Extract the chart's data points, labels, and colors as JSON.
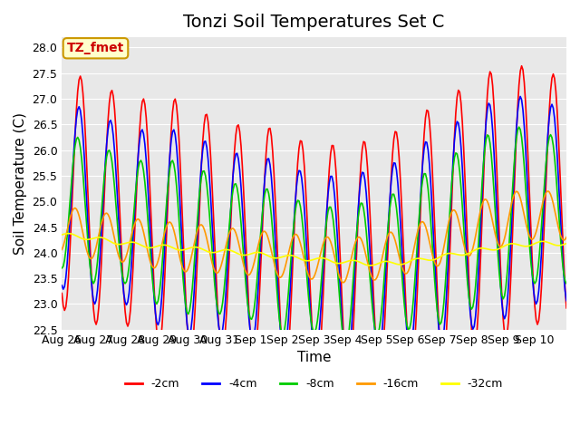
{
  "title": "Tonzi Soil Temperatures Set C",
  "xlabel": "Time",
  "ylabel": "Soil Temperature (C)",
  "annotation_text": "TZ_fmet",
  "annotation_bg": "#ffffcc",
  "annotation_border": "#cc9900",
  "annotation_text_color": "#cc0000",
  "ylim": [
    22.5,
    28.2
  ],
  "plot_bg": "#e8e8e8",
  "legend_entries": [
    "-2cm",
    "-4cm",
    "-8cm",
    "-16cm",
    "-32cm"
  ],
  "line_colors": [
    "#ff0000",
    "#0000ff",
    "#00cc00",
    "#ff9900",
    "#ffff00"
  ],
  "x_tick_labels": [
    "Aug 26",
    "Aug 27",
    "Aug 28",
    "Aug 29",
    "Aug 30",
    "Aug 31",
    "Sep 1",
    "Sep 2",
    "Sep 3",
    "Sep 4",
    "Sep 5",
    "Sep 6",
    "Sep 7",
    "Sep 8",
    "Sep 9",
    "Sep 10"
  ],
  "title_fontsize": 14,
  "axis_label_fontsize": 11,
  "tick_fontsize": 9,
  "mean_2cm": [
    25.2,
    25.0,
    24.8,
    24.6,
    24.5,
    24.3,
    24.2,
    24.0,
    23.85,
    23.75,
    23.9,
    24.1,
    24.4,
    24.7,
    25.0,
    25.1,
    25.0
  ],
  "amp_2cm": [
    2.3,
    2.4,
    2.2,
    2.4,
    2.5,
    2.2,
    2.3,
    2.4,
    2.2,
    2.4,
    2.3,
    2.4,
    2.6,
    2.6,
    2.7,
    2.5,
    2.4
  ],
  "mean_4cm": [
    25.1,
    24.9,
    24.7,
    24.5,
    24.4,
    24.2,
    24.1,
    23.9,
    23.75,
    23.65,
    23.8,
    24.0,
    24.3,
    24.6,
    24.9,
    25.0,
    24.9
  ],
  "amp_4cm": [
    1.8,
    1.9,
    1.7,
    1.9,
    2.0,
    1.8,
    1.8,
    1.9,
    1.7,
    1.9,
    1.8,
    1.9,
    2.1,
    2.1,
    2.2,
    2.0,
    1.9
  ],
  "mean_8cm": [
    25.0,
    24.8,
    24.6,
    24.4,
    24.3,
    24.1,
    24.0,
    23.8,
    23.65,
    23.55,
    23.7,
    23.9,
    24.2,
    24.5,
    24.8,
    24.9,
    24.8
  ],
  "amp_8cm": [
    1.3,
    1.4,
    1.2,
    1.4,
    1.5,
    1.3,
    1.3,
    1.4,
    1.2,
    1.4,
    1.3,
    1.4,
    1.6,
    1.6,
    1.7,
    1.5,
    1.4
  ],
  "mean_16cm": [
    24.45,
    24.35,
    24.25,
    24.15,
    24.1,
    24.05,
    24.0,
    23.95,
    23.9,
    23.85,
    23.9,
    24.05,
    24.25,
    24.45,
    24.65,
    24.75,
    24.7
  ],
  "amp_16cm": [
    0.45,
    0.48,
    0.44,
    0.46,
    0.48,
    0.45,
    0.44,
    0.44,
    0.42,
    0.44,
    0.43,
    0.45,
    0.5,
    0.5,
    0.52,
    0.48,
    0.46
  ],
  "mean_32cm": [
    24.35,
    24.28,
    24.18,
    24.12,
    24.08,
    24.03,
    23.98,
    23.92,
    23.87,
    23.82,
    23.78,
    23.82,
    23.92,
    24.02,
    24.12,
    24.18,
    24.18
  ],
  "amp_32cm": [
    0.04,
    0.04,
    0.04,
    0.04,
    0.04,
    0.04,
    0.04,
    0.04,
    0.04,
    0.04,
    0.04,
    0.04,
    0.04,
    0.04,
    0.04,
    0.04,
    0.04
  ],
  "phase_offsets": [
    8,
    7,
    6,
    4,
    0
  ]
}
